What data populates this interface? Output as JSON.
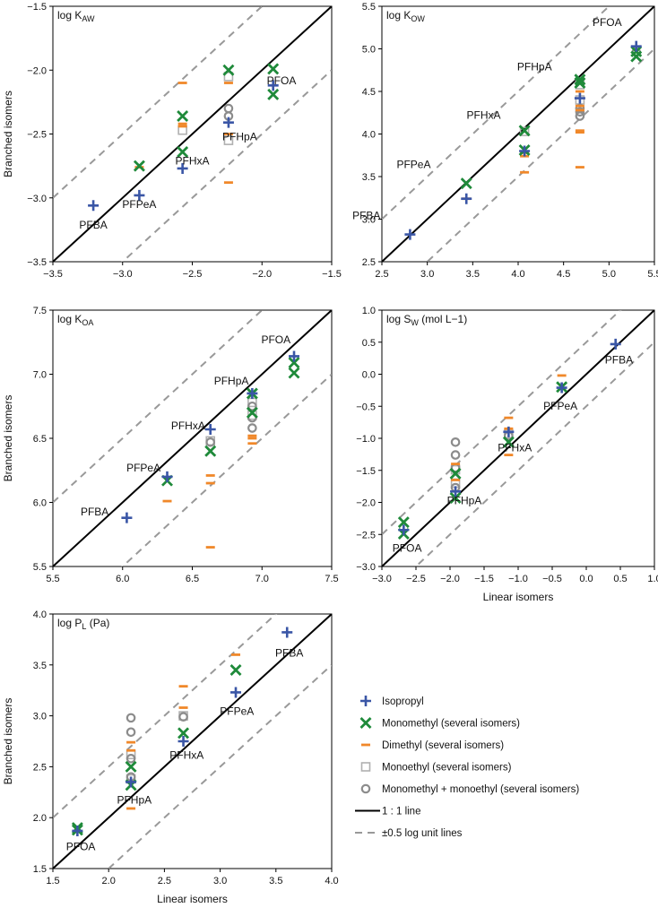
{
  "colors": {
    "Isopropyl": "#3a56a6",
    "Monomethyl": "#1f8a3a",
    "Dimethyl": "#f0882a",
    "Monoethyl": "#b0b0b0",
    "Mono_mono": "#8c8c8c",
    "oneToOne": "#000000",
    "dashed": "#999999"
  },
  "legend": [
    {
      "key": "Isopropyl",
      "label": "Isopropyl",
      "shape": "plus"
    },
    {
      "key": "Monomethyl",
      "label": "Monomethyl (several isomers)",
      "shape": "x"
    },
    {
      "key": "Dimethyl",
      "label": "Dimethyl (several isomers)",
      "shape": "dash"
    },
    {
      "key": "Monoethyl",
      "label": "Monoethyl (several isomers)",
      "shape": "square"
    },
    {
      "key": "Mono_mono",
      "label": "Monomethyl + monoethyl (several isomers)",
      "shape": "circle"
    },
    {
      "key": "oneToOne",
      "label": "1 : 1 line",
      "shape": "solid"
    },
    {
      "key": "dashed",
      "label": "±0.5 log unit lines",
      "shape": "dashed"
    }
  ],
  "chart_data": [
    {
      "type": "scatter",
      "title_main": "log K",
      "title_sub": "AW",
      "title_tail": "",
      "xlabel": "",
      "ylabel": "Branched isomers",
      "xlim": [
        -3.5,
        -1.5
      ],
      "ylim": [
        -3.5,
        -1.5
      ],
      "xticks": [
        "-3.5",
        "-3.0",
        "-2.5",
        "-2.0",
        "-1.5"
      ],
      "yticks": [
        "-3.5",
        "-3.0",
        "-2.5",
        "-2.0",
        "-1.5"
      ],
      "compound_labels": [
        {
          "text": "PFBA",
          "x": -3.21,
          "y": -3.24
        },
        {
          "text": "PFPeA",
          "x": -2.88,
          "y": -3.08
        },
        {
          "text": "PFHxA",
          "x": -2.5,
          "y": -2.74
        },
        {
          "text": "PFHpA",
          "x": -2.16,
          "y": -2.55
        },
        {
          "text": "PFOA",
          "x": -1.86,
          "y": -2.11
        }
      ],
      "series": [
        {
          "name": "Isopropyl",
          "points": [
            [
              -3.21,
              -3.06
            ],
            [
              -2.88,
              -2.98
            ],
            [
              -2.57,
              -2.77
            ],
            [
              -2.24,
              -2.41
            ],
            [
              -1.92,
              -2.12
            ]
          ]
        },
        {
          "name": "Monomethyl",
          "points": [
            [
              -2.88,
              -2.75
            ],
            [
              -2.57,
              -2.64
            ],
            [
              -2.57,
              -2.36
            ],
            [
              -2.24,
              -2.0
            ],
            [
              -1.92,
              -1.99
            ],
            [
              -1.92,
              -2.19
            ]
          ]
        },
        {
          "name": "Dimethyl",
          "points": [
            [
              -2.88,
              -2.76
            ],
            [
              -2.57,
              -2.1
            ],
            [
              -2.57,
              -2.42
            ],
            [
              -2.57,
              -2.44
            ],
            [
              -2.24,
              -2.1
            ],
            [
              -2.24,
              -2.5
            ],
            [
              -2.24,
              -2.88
            ]
          ]
        },
        {
          "name": "Monoethyl",
          "points": [
            [
              -2.57,
              -2.47
            ],
            [
              -2.24,
              -2.05
            ],
            [
              -2.24,
              -2.55
            ]
          ]
        },
        {
          "name": "Mono_mono",
          "points": [
            [
              -2.24,
              -2.3
            ],
            [
              -2.24,
              -2.36
            ]
          ]
        }
      ]
    },
    {
      "type": "scatter",
      "title_main": "log K",
      "title_sub": "OW",
      "title_tail": "",
      "xlabel": "",
      "ylabel": "",
      "xlim": [
        2.5,
        5.5
      ],
      "ylim": [
        2.5,
        5.5
      ],
      "xticks": [
        "2.5",
        "3.0",
        "3.5",
        "4.0",
        "4.5",
        "5.0",
        "5.5"
      ],
      "yticks": [
        "2.5",
        "3.0",
        "3.5",
        "4.0",
        "4.5",
        "5.0",
        "5.5"
      ],
      "compound_labels": [
        {
          "text": "PFBA",
          "x": 2.33,
          "y": 3.0
        },
        {
          "text": "PFPeA",
          "x": 2.85,
          "y": 3.6
        },
        {
          "text": "PFHxA",
          "x": 3.62,
          "y": 4.18
        },
        {
          "text": "PFHpA",
          "x": 4.18,
          "y": 4.75
        },
        {
          "text": "PFOA",
          "x": 4.98,
          "y": 5.27
        }
      ],
      "series": [
        {
          "name": "Isopropyl",
          "points": [
            [
              2.81,
              2.82
            ],
            [
              3.43,
              3.24
            ],
            [
              4.07,
              3.8
            ],
            [
              4.68,
              4.42
            ],
            [
              5.3,
              5.03
            ]
          ]
        },
        {
          "name": "Monomethyl",
          "points": [
            [
              3.43,
              3.42
            ],
            [
              4.07,
              4.04
            ],
            [
              4.07,
              3.81
            ],
            [
              4.68,
              4.64
            ],
            [
              4.68,
              4.6
            ],
            [
              5.3,
              4.97
            ],
            [
              5.3,
              4.91
            ]
          ]
        },
        {
          "name": "Dimethyl",
          "points": [
            [
              3.43,
              3.24
            ],
            [
              4.07,
              3.78
            ],
            [
              4.07,
              3.74
            ],
            [
              4.07,
              3.55
            ],
            [
              4.68,
              4.5
            ],
            [
              4.68,
              4.33
            ],
            [
              4.68,
              4.28
            ],
            [
              4.68,
              4.04
            ],
            [
              4.68,
              4.02
            ],
            [
              4.68,
              3.61
            ]
          ]
        },
        {
          "name": "Monoethyl",
          "points": [
            [
              4.07,
              4.03
            ],
            [
              4.68,
              4.58
            ],
            [
              4.68,
              4.4
            ]
          ]
        },
        {
          "name": "Mono_mono",
          "points": [
            [
              4.68,
              4.3
            ],
            [
              4.68,
              4.26
            ],
            [
              4.68,
              4.21
            ],
            [
              5.3,
              4.96
            ]
          ]
        }
      ]
    },
    {
      "type": "scatter",
      "title_main": "log K",
      "title_sub": "OA",
      "title_tail": "",
      "xlabel": "",
      "ylabel": "Branched isomers",
      "xlim": [
        5.5,
        7.5
      ],
      "ylim": [
        5.5,
        7.5
      ],
      "xticks": [
        "5.5",
        "6.0",
        "6.5",
        "7.0",
        "7.5"
      ],
      "yticks": [
        "5.5",
        "6.0",
        "6.5",
        "7.0",
        "7.5"
      ],
      "compound_labels": [
        {
          "text": "PFBA",
          "x": 5.8,
          "y": 5.9
        },
        {
          "text": "PFPeA",
          "x": 6.15,
          "y": 6.24
        },
        {
          "text": "PFHxA",
          "x": 6.47,
          "y": 6.57
        },
        {
          "text": "PFHpA",
          "x": 6.78,
          "y": 6.92
        },
        {
          "text": "PFOA",
          "x": 7.1,
          "y": 7.24
        }
      ],
      "series": [
        {
          "name": "Isopropyl",
          "points": [
            [
              6.03,
              5.88
            ],
            [
              6.32,
              6.2
            ],
            [
              6.63,
              6.57
            ],
            [
              6.93,
              6.85
            ],
            [
              7.23,
              7.14
            ]
          ]
        },
        {
          "name": "Monomethyl",
          "points": [
            [
              6.32,
              6.17
            ],
            [
              6.63,
              6.4
            ],
            [
              6.93,
              6.85
            ],
            [
              6.93,
              6.7
            ],
            [
              7.23,
              7.09
            ],
            [
              7.23,
              7.01
            ]
          ]
        },
        {
          "name": "Dimethyl",
          "points": [
            [
              6.32,
              6.01
            ],
            [
              6.63,
              6.21
            ],
            [
              6.63,
              6.15
            ],
            [
              6.63,
              5.65
            ],
            [
              6.93,
              6.52
            ],
            [
              6.93,
              6.5
            ],
            [
              6.93,
              6.46
            ]
          ]
        },
        {
          "name": "Monoethyl",
          "points": [
            [
              6.63,
              6.48
            ],
            [
              6.93,
              6.78
            ],
            [
              6.93,
              6.68
            ]
          ]
        },
        {
          "name": "Mono_mono",
          "points": [
            [
              6.63,
              6.47
            ],
            [
              6.93,
              6.75
            ],
            [
              6.93,
              6.66
            ],
            [
              6.93,
              6.58
            ]
          ]
        }
      ]
    },
    {
      "type": "scatter",
      "title_main": "log S",
      "title_sub": "W",
      "title_tail": " (mol L−1)",
      "xlabel": "Linear isomers",
      "ylabel": "",
      "xlim": [
        -3.0,
        1.0
      ],
      "ylim": [
        -3.0,
        1.0
      ],
      "xticks": [
        "-3.0",
        "-2.5",
        "-2.0",
        "-1.5",
        "-1.0",
        "-0.5",
        "0.0",
        "0.5",
        "1.0"
      ],
      "yticks": [
        "-3.0",
        "-2.5",
        "-2.0",
        "-1.5",
        "-1.0",
        "-0.5",
        "0.0",
        "0.5",
        "1.0"
      ],
      "compound_labels": [
        {
          "text": "PFBA",
          "x": 0.48,
          "y": 0.17
        },
        {
          "text": "PFPeA",
          "x": -0.38,
          "y": -0.55
        },
        {
          "text": "PFHxA",
          "x": -1.05,
          "y": -1.2
        },
        {
          "text": "PFHpA",
          "x": -1.79,
          "y": -2.03
        },
        {
          "text": "PFOA",
          "x": -2.63,
          "y": -2.77
        }
      ],
      "series": [
        {
          "name": "Isopropyl",
          "points": [
            [
              0.43,
              0.47
            ],
            [
              -0.36,
              -0.21
            ],
            [
              -1.14,
              -0.9
            ],
            [
              -1.92,
              -1.83
            ],
            [
              -2.68,
              -2.43
            ]
          ]
        },
        {
          "name": "Monomethyl",
          "points": [
            [
              -0.36,
              -0.2
            ],
            [
              -1.14,
              -1.06
            ],
            [
              -1.92,
              -1.93
            ],
            [
              -1.92,
              -1.55
            ],
            [
              -2.68,
              -2.31
            ],
            [
              -2.68,
              -2.49
            ]
          ]
        },
        {
          "name": "Dimethyl",
          "points": [
            [
              -0.36,
              -0.02
            ],
            [
              -1.14,
              -0.68
            ],
            [
              -1.14,
              -0.85
            ],
            [
              -1.14,
              -1.26
            ],
            [
              -1.92,
              -1.4
            ],
            [
              -1.92,
              -1.65
            ]
          ]
        },
        {
          "name": "Monoethyl",
          "points": [
            [
              -1.14,
              -0.93
            ],
            [
              -1.92,
              -1.49
            ],
            [
              -1.92,
              -1.7
            ]
          ]
        },
        {
          "name": "Mono_mono",
          "points": [
            [
              -1.14,
              -0.96
            ],
            [
              -1.92,
              -1.06
            ],
            [
              -1.92,
              -1.26
            ],
            [
              -1.92,
              -1.46
            ],
            [
              -1.92,
              -1.77
            ]
          ]
        }
      ]
    },
    {
      "type": "scatter",
      "title_main": "log P",
      "title_sub": "L",
      "title_tail": " (Pa)",
      "xlabel": "Linear isomers",
      "ylabel": "Branched isomers",
      "xlim": [
        1.5,
        4.0
      ],
      "ylim": [
        1.5,
        4.0
      ],
      "xticks": [
        "1.5",
        "2.0",
        "2.5",
        "3.0",
        "3.5",
        "4.0"
      ],
      "yticks": [
        "1.5",
        "2.0",
        "2.5",
        "3.0",
        "3.5",
        "4.0"
      ],
      "compound_labels": [
        {
          "text": "PFBA",
          "x": 3.62,
          "y": 3.58
        },
        {
          "text": "PFPeA",
          "x": 3.15,
          "y": 3.01
        },
        {
          "text": "PFHxA",
          "x": 2.7,
          "y": 2.58
        },
        {
          "text": "PFHpA",
          "x": 2.23,
          "y": 2.14
        },
        {
          "text": "PFOA",
          "x": 1.75,
          "y": 1.68
        }
      ],
      "series": [
        {
          "name": "Isopropyl",
          "points": [
            [
              3.6,
              3.82
            ],
            [
              3.14,
              3.23
            ],
            [
              2.67,
              2.75
            ],
            [
              2.2,
              2.35
            ],
            [
              1.72,
              1.87
            ]
          ]
        },
        {
          "name": "Monomethyl",
          "points": [
            [
              3.14,
              3.45
            ],
            [
              2.67,
              2.83
            ],
            [
              2.2,
              2.5
            ],
            [
              2.2,
              2.32
            ],
            [
              1.72,
              1.9
            ],
            [
              1.72,
              1.88
            ]
          ]
        },
        {
          "name": "Dimethyl",
          "points": [
            [
              3.14,
              3.6
            ],
            [
              2.67,
              3.29
            ],
            [
              2.67,
              3.08
            ],
            [
              2.2,
              2.74
            ],
            [
              2.2,
              2.66
            ],
            [
              2.2,
              2.09
            ]
          ]
        },
        {
          "name": "Monoethyl",
          "points": [
            [
              2.67,
              3.0
            ],
            [
              2.2,
              2.62
            ],
            [
              2.2,
              2.38
            ]
          ]
        },
        {
          "name": "Mono_mono",
          "points": [
            [
              2.67,
              2.99
            ],
            [
              2.2,
              2.98
            ],
            [
              2.2,
              2.84
            ],
            [
              2.2,
              2.58
            ],
            [
              2.2,
              2.4
            ]
          ]
        }
      ]
    }
  ]
}
